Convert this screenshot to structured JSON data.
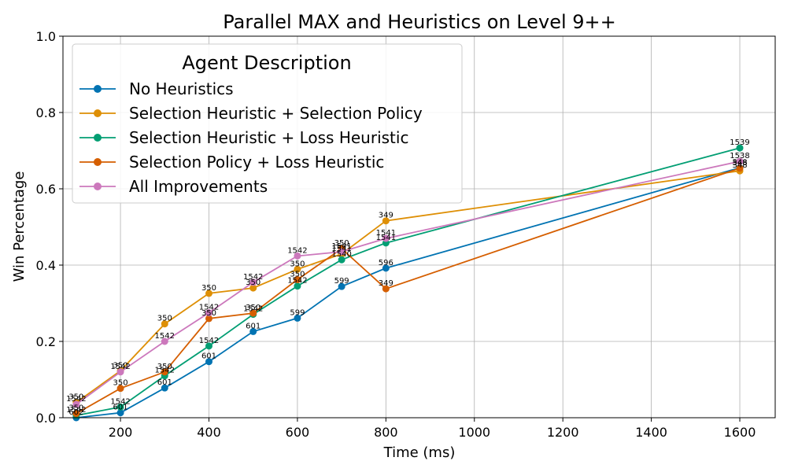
{
  "chart_data": {
    "type": "line",
    "title": "Parallel MAX and Heuristics on Level 9++",
    "xlabel": "Time (ms)",
    "ylabel": "Win Percentage",
    "xlim": [
      70,
      1680
    ],
    "ylim": [
      0.0,
      1.0
    ],
    "xticks": [
      200,
      400,
      600,
      800,
      1000,
      1200,
      1400,
      1600
    ],
    "xtick_labels": [
      "200",
      "400",
      "600",
      "800",
      "1000",
      "1200",
      "1400",
      "1600"
    ],
    "yticks": [
      0.0,
      0.2,
      0.4,
      0.6,
      0.8,
      1.0
    ],
    "ytick_labels": [
      "0.0",
      "0.2",
      "0.4",
      "0.6",
      "0.8",
      "1.0"
    ],
    "grid": true,
    "legend": {
      "title": "Agent Description",
      "placement": "top-left"
    },
    "series": [
      {
        "name": "No Heuristics",
        "color": "#0173b2",
        "x": [
          100,
          200,
          300,
          400,
          500,
          600,
          700,
          800,
          1600
        ],
        "y": [
          0.0,
          0.013,
          0.078,
          0.147,
          0.226,
          0.261,
          0.344,
          0.392,
          0.655
        ],
        "labels": [
          "602",
          "601",
          "601",
          "601",
          "601",
          "599",
          "599",
          "596",
          "548"
        ]
      },
      {
        "name": "Selection Heuristic + Selection Policy",
        "color": "#de8f05",
        "x": [
          100,
          200,
          300,
          400,
          500,
          600,
          700,
          800,
          1600
        ],
        "y": [
          0.04,
          0.123,
          0.246,
          0.326,
          0.34,
          0.389,
          0.429,
          0.516,
          0.647
        ],
        "labels": [
          "350",
          "350",
          "350",
          "350",
          "350",
          "350",
          "1541",
          "349",
          "348"
        ]
      },
      {
        "name": "Selection Heuristic + Loss Heuristic",
        "color": "#029e73",
        "x": [
          100,
          200,
          300,
          400,
          500,
          600,
          700,
          800,
          1600
        ],
        "y": [
          0.006,
          0.028,
          0.11,
          0.188,
          0.271,
          0.345,
          0.414,
          0.458,
          0.707
        ],
        "labels": [
          "1542",
          "1542",
          "1542",
          "1542",
          "1542",
          "1542",
          "1540",
          "1541",
          "1539"
        ]
      },
      {
        "name": "Selection Policy + Loss Heuristic",
        "color": "#d55e00",
        "x": [
          100,
          200,
          300,
          400,
          500,
          600,
          700,
          800,
          1600
        ],
        "y": [
          0.011,
          0.077,
          0.12,
          0.26,
          0.274,
          0.362,
          0.443,
          0.338,
          0.654
        ],
        "labels": [
          "350",
          "350",
          "350",
          "350",
          "350",
          "350",
          "350",
          "349",
          "348"
        ]
      },
      {
        "name": "All Improvements",
        "color": "#cc78bc",
        "x": [
          100,
          200,
          300,
          400,
          500,
          600,
          700,
          800,
          1600
        ],
        "y": [
          0.035,
          0.12,
          0.2,
          0.275,
          0.355,
          0.424,
          0.435,
          0.47,
          0.672
        ],
        "labels": [
          "1542",
          "1542",
          "1542",
          "1542",
          "1542",
          "1542",
          "1541",
          "1541",
          "1538"
        ]
      }
    ]
  }
}
